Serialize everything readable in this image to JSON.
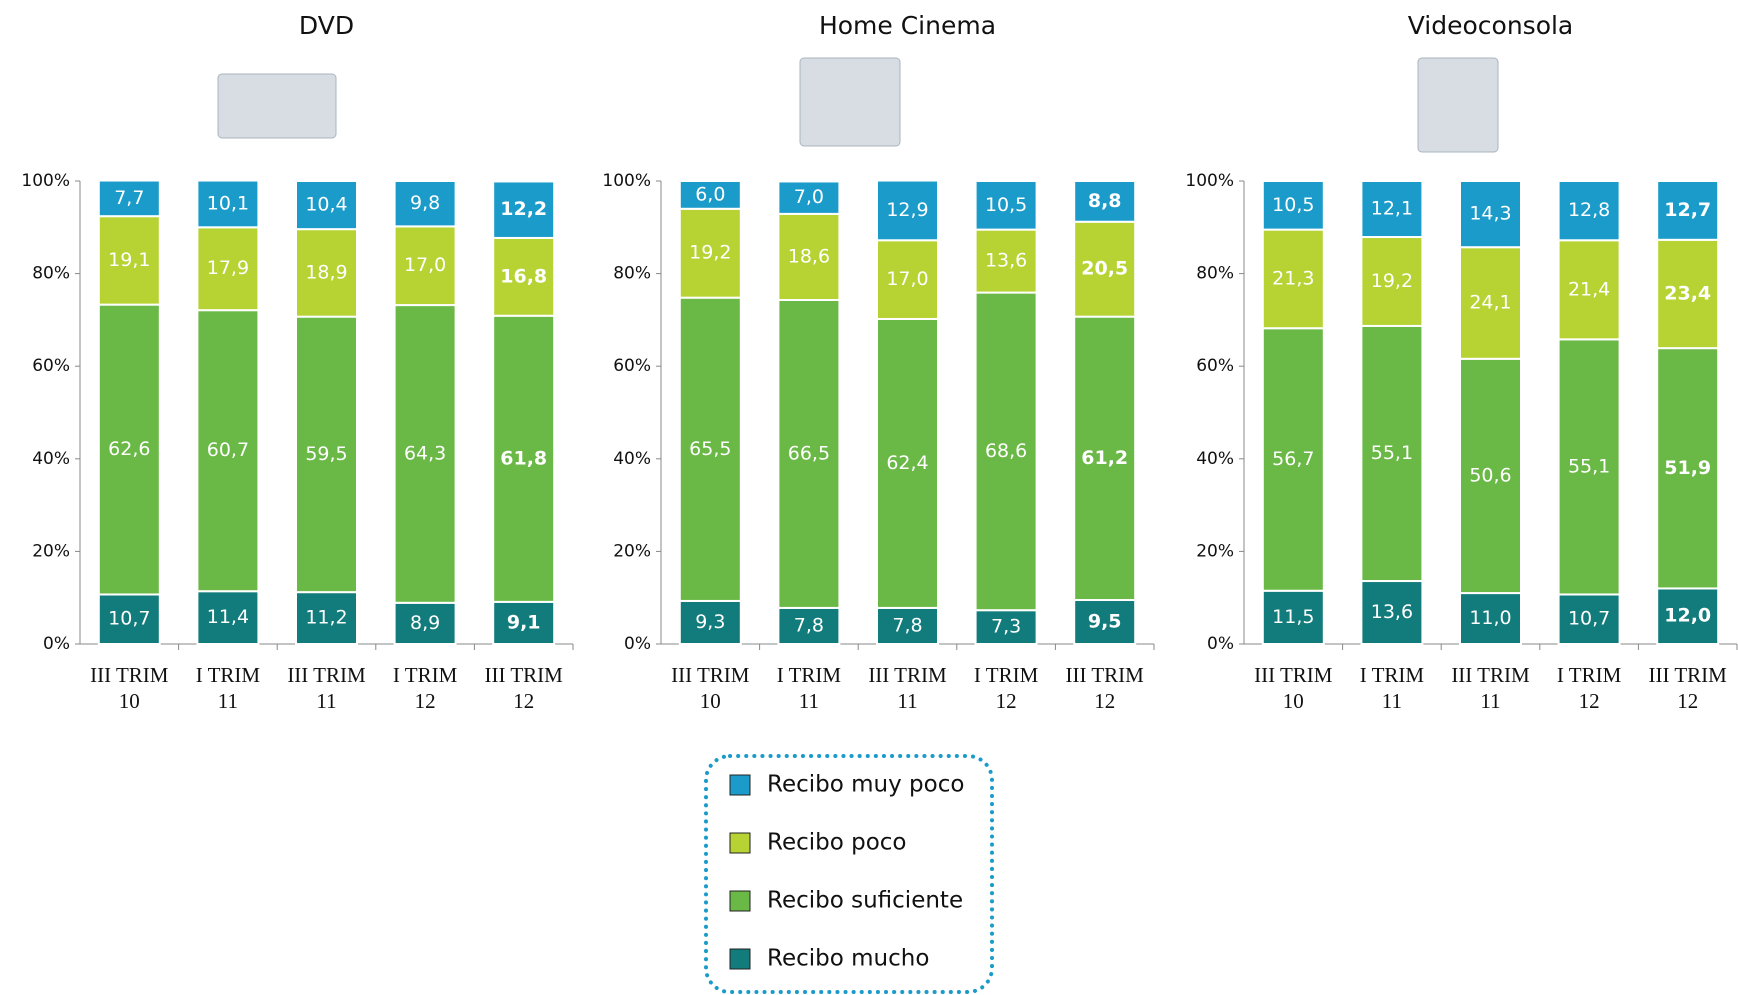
{
  "chart_data": [
    {
      "type": "stacked_bar",
      "title": "DVD",
      "categories": [
        "III TRIM\n10",
        "I TRIM\n11",
        "III TRIM\n11",
        "I TRIM\n12",
        "III TRIM\n12"
      ],
      "ylim": [
        0,
        100
      ],
      "yticks": [
        {
          "value": 0,
          "label": "0%"
        },
        {
          "value": 20,
          "label": "20%"
        },
        {
          "value": 40,
          "label": "40%"
        },
        {
          "value": 60,
          "label": "60%"
        },
        {
          "value": 80,
          "label": "80%"
        },
        {
          "value": 100,
          "label": "100%"
        }
      ],
      "series": [
        {
          "name": "Recibo mucho",
          "color": "#127b7c",
          "values": [
            10.7,
            11.4,
            11.2,
            8.9,
            9.1
          ],
          "value_labels": [
            "10,7",
            "11,4",
            "11,2",
            "8,9",
            "9,1"
          ]
        },
        {
          "name": "Recibo suficiente",
          "color": "#6ab845",
          "values": [
            62.6,
            60.7,
            59.5,
            64.3,
            61.8
          ],
          "value_labels": [
            "62,6",
            "60,7",
            "59,5",
            "64,3",
            "61,8"
          ]
        },
        {
          "name": "Recibo poco",
          "color": "#b6d333",
          "values": [
            19.1,
            17.9,
            18.9,
            17.0,
            16.8
          ],
          "value_labels": [
            "19,1",
            "17,9",
            "18,9",
            "17,0",
            "16,8"
          ]
        },
        {
          "name": "Recibo muy poco",
          "color": "#1b9bca",
          "values": [
            7.7,
            10.1,
            10.4,
            9.8,
            12.2
          ],
          "value_labels": [
            "7,7",
            "10,1",
            "10,4",
            "9,8",
            "12,2"
          ]
        }
      ]
    },
    {
      "type": "stacked_bar",
      "title": "Home Cinema",
      "categories": [
        "III TRIM\n10",
        "I TRIM\n11",
        "III TRIM\n11",
        "I TRIM\n12",
        "III TRIM\n12"
      ],
      "ylim": [
        0,
        100
      ],
      "yticks": [
        {
          "value": 0,
          "label": "0%"
        },
        {
          "value": 20,
          "label": "20%"
        },
        {
          "value": 40,
          "label": "40%"
        },
        {
          "value": 60,
          "label": "60%"
        },
        {
          "value": 80,
          "label": "80%"
        },
        {
          "value": 100,
          "label": "100%"
        }
      ],
      "series": [
        {
          "color": "#127b7c",
          "values": [
            9.3,
            7.8,
            7.8,
            7.3,
            9.5
          ],
          "value_labels": [
            "9,3",
            "7,8",
            "7,8",
            "7,3",
            "9,5"
          ]
        },
        {
          "color": "#6ab845",
          "values": [
            65.5,
            66.5,
            62.4,
            68.6,
            61.2
          ],
          "value_labels": [
            "65,5",
            "66,5",
            "62,4",
            "68,6",
            "61,2"
          ]
        },
        {
          "color": "#b6d333",
          "values": [
            19.2,
            18.6,
            17.0,
            13.6,
            20.5
          ],
          "value_labels": [
            "19,2",
            "18,6",
            "17,0",
            "13,6",
            "20,5"
          ]
        },
        {
          "color": "#1b9bca",
          "values": [
            6.0,
            7.0,
            12.9,
            10.5,
            8.8
          ],
          "value_labels": [
            "6,0",
            "7,0",
            "12,9",
            "10,5",
            "8,8"
          ]
        }
      ]
    },
    {
      "type": "stacked_bar",
      "title": "Videoconsola",
      "categories": [
        "III TRIM\n10",
        "I TRIM\n11",
        "III TRIM\n11",
        "I TRIM\n12",
        "III TRIM\n12"
      ],
      "ylim": [
        0,
        100
      ],
      "yticks": [
        {
          "value": 0,
          "label": "0%"
        },
        {
          "value": 20,
          "label": "20%"
        },
        {
          "value": 40,
          "label": "40%"
        },
        {
          "value": 60,
          "label": "60%"
        },
        {
          "value": 80,
          "label": "80%"
        },
        {
          "value": 100,
          "label": "100%"
        }
      ],
      "series": [
        {
          "color": "#127b7c",
          "values": [
            11.5,
            13.6,
            11.0,
            10.7,
            12.0
          ],
          "value_labels": [
            "11,5",
            "13,6",
            "11,0",
            "10,7",
            "12,0"
          ]
        },
        {
          "color": "#6ab845",
          "values": [
            56.7,
            55.1,
            50.6,
            55.1,
            51.9
          ],
          "value_labels": [
            "56,7",
            "55,1",
            "50,6",
            "55,1",
            "51,9"
          ]
        },
        {
          "color": "#b6d333",
          "values": [
            21.3,
            19.2,
            24.1,
            21.4,
            23.4
          ],
          "value_labels": [
            "21,3",
            "19,2",
            "24,1",
            "21,4",
            "23,4"
          ]
        },
        {
          "color": "#1b9bca",
          "values": [
            10.5,
            12.1,
            14.3,
            12.8,
            12.7
          ],
          "value_labels": [
            "10,5",
            "12,1",
            "14,3",
            "12,8",
            "12,7"
          ]
        }
      ]
    }
  ]
}
